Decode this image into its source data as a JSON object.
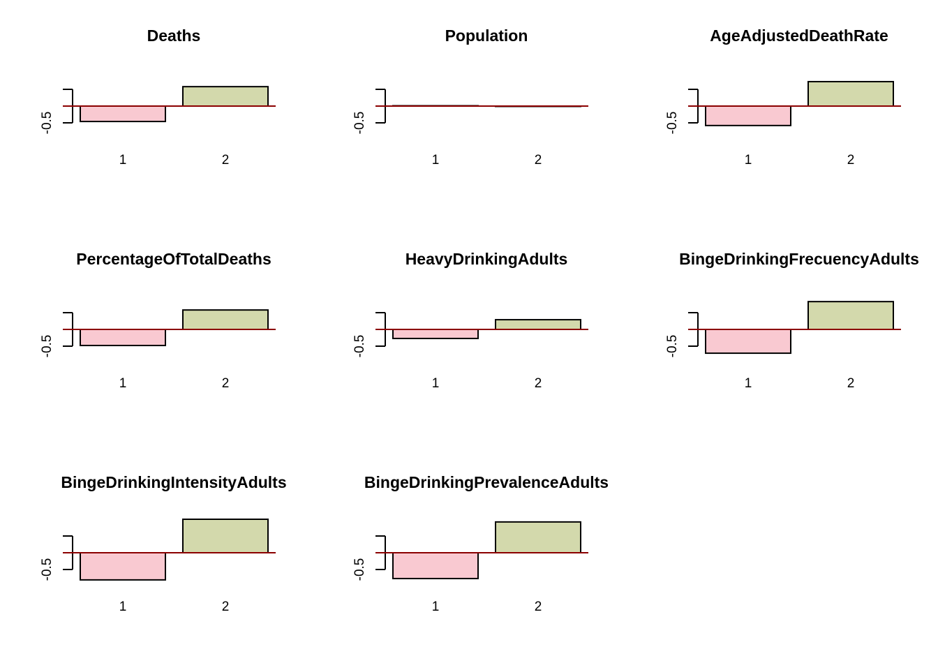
{
  "chart_data": [
    {
      "type": "bar",
      "title": "Deaths",
      "categories": [
        "1",
        "2"
      ],
      "values": [
        -0.46,
        0.58
      ],
      "colors": [
        "#f9c9d1",
        "#d3d9ac"
      ],
      "baseline_color": "#8b0000",
      "ylim": [
        -1.05,
        1.05
      ],
      "yticks": [
        {
          "value": -0.5,
          "label": "-0.5"
        },
        {
          "value": 0,
          "label": null
        },
        {
          "value": 0.5,
          "label": null
        }
      ]
    },
    {
      "type": "bar",
      "title": "Population",
      "categories": [
        "1",
        "2"
      ],
      "values": [
        0.01,
        -0.01
      ],
      "colors": [
        "#f9c9d1",
        "#d3d9ac"
      ],
      "baseline_color": "#8b0000",
      "ylim": [
        -1.05,
        1.05
      ],
      "yticks": [
        {
          "value": -0.5,
          "label": "-0.5"
        },
        {
          "value": 0,
          "label": null
        },
        {
          "value": 0.5,
          "label": null
        }
      ]
    },
    {
      "type": "bar",
      "title": "AgeAdjustedDeathRate",
      "categories": [
        "1",
        "2"
      ],
      "values": [
        -0.58,
        0.73
      ],
      "colors": [
        "#f9c9d1",
        "#d3d9ac"
      ],
      "baseline_color": "#8b0000",
      "ylim": [
        -1.05,
        1.05
      ],
      "yticks": [
        {
          "value": -0.5,
          "label": "-0.5"
        },
        {
          "value": 0,
          "label": null
        },
        {
          "value": 0.5,
          "label": null
        }
      ]
    },
    {
      "type": "bar",
      "title": "PercentageOfTotalDeaths",
      "categories": [
        "1",
        "2"
      ],
      "values": [
        -0.48,
        0.58
      ],
      "colors": [
        "#f9c9d1",
        "#d3d9ac"
      ],
      "baseline_color": "#8b0000",
      "ylim": [
        -1.05,
        1.05
      ],
      "yticks": [
        {
          "value": -0.5,
          "label": "-0.5"
        },
        {
          "value": 0,
          "label": null
        },
        {
          "value": 0.5,
          "label": null
        }
      ]
    },
    {
      "type": "bar",
      "title": "HeavyDrinkingAdults",
      "categories": [
        "1",
        "2"
      ],
      "values": [
        -0.27,
        0.29
      ],
      "colors": [
        "#f9c9d1",
        "#d3d9ac"
      ],
      "baseline_color": "#8b0000",
      "ylim": [
        -1.05,
        1.05
      ],
      "yticks": [
        {
          "value": -0.5,
          "label": "-0.5"
        },
        {
          "value": 0,
          "label": null
        },
        {
          "value": 0.5,
          "label": null
        }
      ]
    },
    {
      "type": "bar",
      "title": "BingeDrinkingFrecuencyAdults",
      "categories": [
        "1",
        "2"
      ],
      "values": [
        -0.71,
        0.83
      ],
      "colors": [
        "#f9c9d1",
        "#d3d9ac"
      ],
      "baseline_color": "#8b0000",
      "ylim": [
        -1.05,
        1.05
      ],
      "yticks": [
        {
          "value": -0.5,
          "label": "-0.5"
        },
        {
          "value": 0,
          "label": null
        },
        {
          "value": 0.5,
          "label": null
        }
      ]
    },
    {
      "type": "bar",
      "title": "BingeDrinkingIntensityAdults",
      "categories": [
        "1",
        "2"
      ],
      "values": [
        -0.81,
        1.0
      ],
      "colors": [
        "#f9c9d1",
        "#d3d9ac"
      ],
      "baseline_color": "#8b0000",
      "ylim": [
        -1.05,
        1.05
      ],
      "yticks": [
        {
          "value": -0.5,
          "label": "-0.5"
        },
        {
          "value": 0,
          "label": null
        },
        {
          "value": 0.5,
          "label": null
        }
      ]
    },
    {
      "type": "bar",
      "title": "BingeDrinkingPrevalenceAdults",
      "categories": [
        "1",
        "2"
      ],
      "values": [
        -0.77,
        0.92
      ],
      "colors": [
        "#f9c9d1",
        "#d3d9ac"
      ],
      "baseline_color": "#8b0000",
      "ylim": [
        -1.05,
        1.05
      ],
      "yticks": [
        {
          "value": -0.5,
          "label": "-0.5"
        },
        {
          "value": 0,
          "label": null
        },
        {
          "value": 0.5,
          "label": null
        }
      ]
    }
  ]
}
